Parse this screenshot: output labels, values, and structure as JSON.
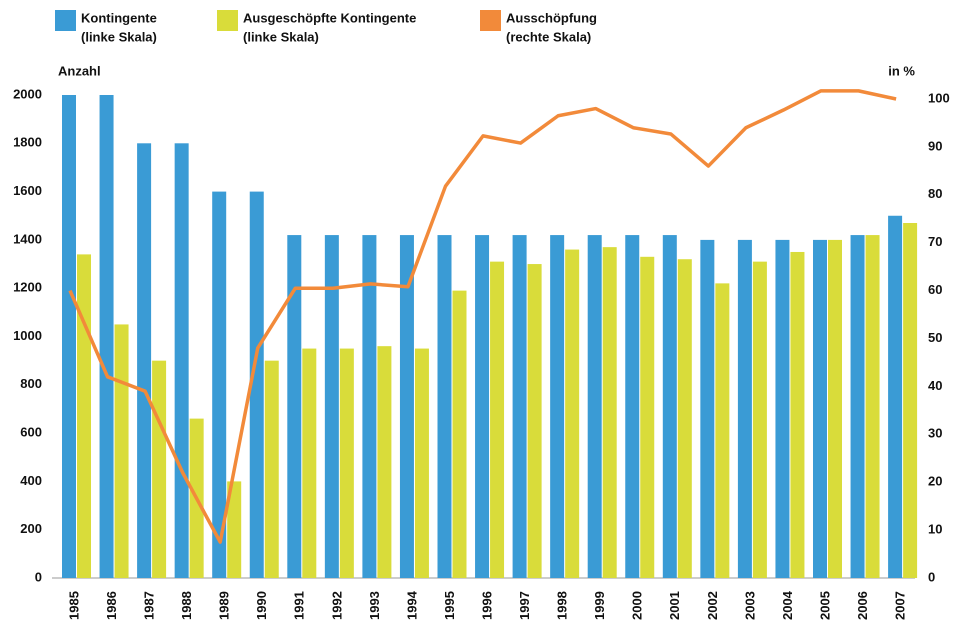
{
  "chart_data": {
    "type": "bar_line",
    "y_axis_label": "Anzahl",
    "y2_axis_label": "in %",
    "categories": [
      "1985",
      "1986",
      "1987",
      "1988",
      "1989",
      "1990",
      "1991",
      "1992",
      "1993",
      "1994",
      "1995",
      "1996",
      "1997",
      "1998",
      "1999",
      "2000",
      "2001",
      "2002",
      "2003",
      "2004",
      "2005",
      "2006",
      "2007"
    ],
    "series": [
      {
        "name": "Kontingente",
        "legend_note": "(linke Skala)",
        "color": "#3a9bd5",
        "type": "bar",
        "values": [
          2000,
          2000,
          1800,
          1800,
          1600,
          1600,
          1420,
          1420,
          1420,
          1420,
          1420,
          1420,
          1420,
          1420,
          1420,
          1420,
          1420,
          1400,
          1400,
          1400,
          1400,
          1420,
          1500
        ]
      },
      {
        "name": "Ausgeschöpfte Kontingente",
        "legend_note": "(linke Skala)",
        "color": "#d9dc3a",
        "type": "bar",
        "values": [
          1340,
          1050,
          900,
          660,
          400,
          900,
          950,
          950,
          960,
          950,
          1190,
          1310,
          1300,
          1360,
          1370,
          1330,
          1320,
          1220,
          1310,
          1350,
          1400,
          1420,
          1470
        ]
      },
      {
        "name": "Ausschöpfung",
        "legend_note": "(rechte Skala)",
        "color": "#f28a3a",
        "type": "line",
        "axis": "y2",
        "values": [
          60,
          42,
          39,
          22,
          7.5,
          48,
          60.5,
          60.5,
          61.4,
          60.8,
          81.8,
          92.3,
          90.8,
          96.5,
          98,
          94,
          92.7,
          86,
          94,
          97.7,
          101.7,
          101.7,
          100
        ]
      }
    ],
    "ylim": [
      0,
      2000
    ],
    "yticks": [
      0,
      200,
      400,
      600,
      800,
      1000,
      1200,
      1400,
      1600,
      1800,
      2000
    ],
    "y2lim": [
      0,
      100
    ],
    "y2ticks": [
      0,
      10,
      20,
      30,
      40,
      50,
      60,
      70,
      80,
      90,
      100
    ]
  }
}
